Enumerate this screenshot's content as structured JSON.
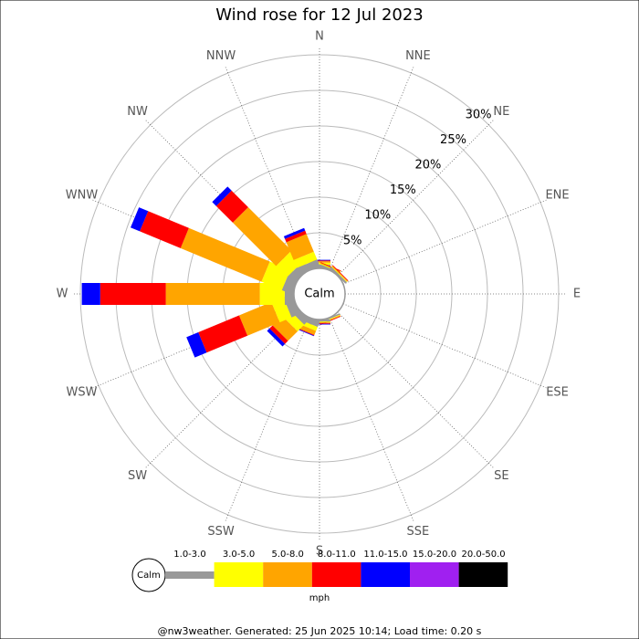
{
  "chart_data": {
    "type": "wind_rose",
    "title": "Wind rose for 12 Jul 2023",
    "categories": [
      "N",
      "NNE",
      "NE",
      "ENE",
      "E",
      "ESE",
      "SE",
      "SSE",
      "S",
      "SSW",
      "SW",
      "WSW",
      "W",
      "WNW",
      "NW",
      "NNW"
    ],
    "calm_label": "Calm",
    "unit": "mph",
    "rlim": [
      0,
      30
    ],
    "rticks": [
      {
        "value": 5,
        "label": "5%"
      },
      {
        "value": 10,
        "label": "10%"
      },
      {
        "value": 15,
        "label": "15%"
      },
      {
        "value": 20,
        "label": "20%"
      },
      {
        "value": 25,
        "label": "25%"
      },
      {
        "value": 30,
        "label": "30%"
      }
    ],
    "series": [
      {
        "name": "1.0-3.0",
        "color": "#999999",
        "values": [
          0.5,
          0.3,
          0.3,
          0,
          0,
          0,
          0,
          0.2,
          0.3,
          0.8,
          1.0,
          1.3,
          1.3,
          1.5,
          1.3,
          1.0
        ]
      },
      {
        "name": "3.0-5.0",
        "color": "#ffff00",
        "values": [
          0.3,
          0.1,
          0.1,
          0,
          0,
          0,
          0,
          0.1,
          0.1,
          0.6,
          1.3,
          1.8,
          3.5,
          3.1,
          2.2,
          1.2
        ]
      },
      {
        "name": "5.0-8.0",
        "color": "#ffa500",
        "values": [
          0.2,
          0.1,
          0.1,
          0,
          0,
          0,
          0,
          0.1,
          0.1,
          0.6,
          1.9,
          4.9,
          13.2,
          12.3,
          8.6,
          2.7
        ]
      },
      {
        "name": "8.0-11.0",
        "color": "#ff0000",
        "values": [
          0.1,
          0.1,
          0.1,
          0,
          0,
          0,
          0,
          0.1,
          0.1,
          0.1,
          0.6,
          6.2,
          9.2,
          6.2,
          3.3,
          0.5
        ]
      },
      {
        "name": "11.0-15.0",
        "color": "#0000ff",
        "values": [
          0.1,
          0,
          0,
          0,
          0,
          0,
          0,
          0,
          0.1,
          0.1,
          0.5,
          1.8,
          2.6,
          1.4,
          0.8,
          0.4
        ]
      },
      {
        "name": "15.0-20.0",
        "color": "#a020f0",
        "values": [
          0,
          0,
          0,
          0,
          0,
          0,
          0,
          0,
          0,
          0,
          0,
          0,
          0,
          0,
          0,
          0
        ]
      },
      {
        "name": "20.0-50.0",
        "color": "#000000",
        "values": [
          0,
          0,
          0,
          0,
          0,
          0,
          0,
          0,
          0,
          0,
          0,
          0,
          0,
          0,
          0,
          0
        ]
      }
    ],
    "footer": "@nw3weather. Generated: 25 Jun 2025 10:14; Load time: 0.20 s"
  }
}
